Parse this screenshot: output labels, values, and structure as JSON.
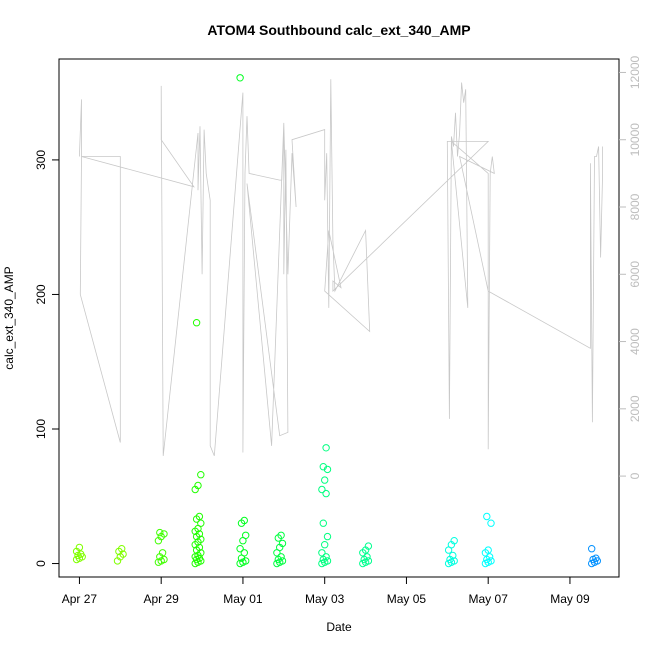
{
  "chart_data": {
    "type": "scatter",
    "title": "ATOM4 Southbound calc_ext_340_AMP",
    "xlabel": "Date",
    "ylabel": "calc_ext_340_AMP",
    "x_tick_labels": [
      "Apr 27",
      "Apr 29",
      "May 01",
      "May 03",
      "May 05",
      "May 07",
      "May 09"
    ],
    "x_ticks_day_offset": [
      0,
      2,
      4,
      6,
      8,
      10,
      12
    ],
    "xlim_day_offset": [
      -0.5,
      13.2
    ],
    "ylim": [
      -10,
      375
    ],
    "y_ticks": [
      0,
      100,
      200,
      300
    ],
    "y2lim": [
      -3000,
      12400
    ],
    "y2_ticks": [
      0,
      2000,
      4000,
      6000,
      8000,
      10000,
      12000
    ],
    "y2_color": "#bdbdbd",
    "grid": false,
    "legend": "none",
    "point_clusters": [
      {
        "t": 0.0,
        "color": "#80ff00",
        "values": [
          3,
          4,
          5,
          6,
          7,
          9,
          12
        ]
      },
      {
        "t": 1.0,
        "color": "#80ff00",
        "values": [
          2,
          5,
          7,
          9,
          11
        ]
      },
      {
        "t": 2.0,
        "color": "#40ff00",
        "values": [
          1,
          2,
          3,
          5,
          8,
          17,
          20,
          22,
          23
        ]
      },
      {
        "t": 2.9,
        "color": "#20ff00",
        "values": [
          0,
          1,
          2,
          3,
          4,
          5,
          6,
          8,
          10,
          12,
          14,
          16,
          18,
          20,
          22,
          24,
          26,
          30,
          33,
          35,
          55,
          58,
          66,
          179
        ]
      },
      {
        "t": 4.0,
        "color": "#00ff20",
        "values": [
          0,
          1,
          2,
          4,
          8,
          11,
          17,
          21,
          30,
          32,
          361
        ]
      },
      {
        "t": 4.9,
        "color": "#00ff40",
        "values": [
          0,
          1,
          2,
          3,
          5,
          8,
          12,
          15,
          19,
          21
        ]
      },
      {
        "t": 6.0,
        "color": "#00ff80",
        "values": [
          0,
          1,
          2,
          3,
          5,
          8,
          14,
          20,
          30,
          52,
          55,
          62,
          70,
          72,
          86
        ]
      },
      {
        "t": 7.0,
        "color": "#00ff90",
        "values": [
          0,
          1,
          2,
          3,
          5,
          8,
          10,
          13
        ]
      },
      {
        "t": 9.1,
        "color": "#00ffe0",
        "values": [
          0,
          1,
          2,
          3,
          6,
          10,
          14,
          17
        ]
      },
      {
        "t": 10.0,
        "color": "#00ffff",
        "values": [
          0,
          1,
          2,
          3,
          5,
          8,
          10,
          30,
          35
        ]
      },
      {
        "t": 12.6,
        "color": "#0090ff",
        "values": [
          0,
          1,
          2,
          3,
          4,
          11
        ]
      }
    ],
    "secondary_series": {
      "name": "",
      "color": "#c8c8c8",
      "x_day_offset": [
        0.0,
        0.05,
        0.05,
        1.0,
        1.0,
        1.0,
        0.02,
        0.05,
        2.8,
        2.0,
        2.0,
        2.05,
        2.9,
        2.9,
        2.95,
        3.0,
        3.05,
        3.1,
        3.2,
        3.2,
        3.3,
        4.0,
        4.0,
        4.05,
        4.1,
        4.15,
        4.9,
        4.95,
        5.0,
        5.0,
        5.05,
        5.1,
        4.9,
        4.1,
        4.7,
        5.0,
        5.1,
        5.2,
        5.3,
        5.2,
        6.0,
        6.0,
        6.05,
        6.1,
        6.15,
        6.2,
        6.25,
        7.0,
        7.1,
        6.0,
        6.1,
        6.4,
        6.2,
        6.2,
        10.0,
        10.0,
        9.0,
        9.05,
        9.1,
        9.15,
        9.2,
        9.25,
        9.3,
        9.35,
        9.4,
        9.45,
        9.5,
        9.1,
        10.0,
        10.0,
        10.05,
        10.1,
        10.15,
        9.3,
        10.0,
        12.5,
        12.5,
        12.55,
        12.6,
        12.65,
        12.7,
        12.75,
        12.8,
        12.8,
        12.8
      ],
      "y_values": [
        9500,
        11200,
        9500,
        9500,
        5400,
        1000,
        5400,
        9500,
        8600,
        10000,
        11600,
        600,
        10200,
        8500,
        10400,
        6000,
        10300,
        9000,
        8200,
        900,
        600,
        11400,
        700,
        9000,
        10700,
        9000,
        8800,
        8800,
        10500,
        6000,
        9700,
        1300,
        1200,
        8700,
        900,
        10500,
        6000,
        9600,
        8000,
        10000,
        10300,
        8200,
        9600,
        5000,
        11800,
        7000,
        5500,
        7300,
        4300,
        5500,
        7300,
        5600,
        5800,
        5500,
        9950,
        9950,
        9950,
        1700,
        10100,
        9800,
        10800,
        9500,
        10200,
        11700,
        11100,
        11500,
        5000,
        9950,
        9000,
        800,
        9000,
        9500,
        9000,
        9500,
        5500,
        3800,
        9300,
        1600,
        9500,
        9500,
        9800,
        6500,
        9000,
        9800,
        9800
      ]
    }
  }
}
